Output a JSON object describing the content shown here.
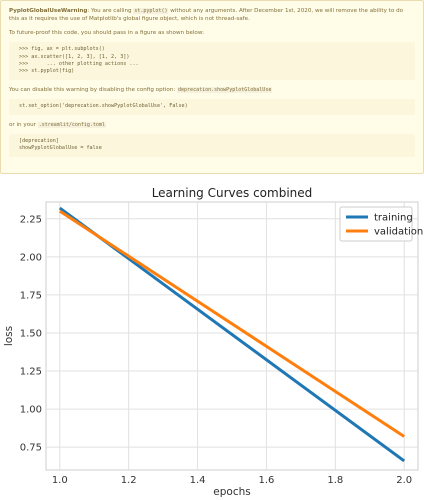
{
  "warning": {
    "title": "PyplotGlobalUseWarning",
    "intro_pre": ": You are calling ",
    "intro_code": "st.pyplot()",
    "intro_post": " without any arguments. After December 1st, 2020, we will remove the ability to do this as it requires the use of Matplotlib's global figure object, which is not thread-safe.",
    "futureproof_text": "To future-proof this code, you should pass in a figure as shown below:",
    "code_lines": [
      ">>> fig, ax = plt.subplots()",
      ">>> ax.scatter([1, 2, 3], [1, 2, 3])",
      ">>>      ... other plotting actions ...",
      ">>> st.pyplot(fig)"
    ],
    "disable_pre": "You can disable this warning by disabling the config option: ",
    "disable_code": "deprecation.showPyplotGlobalUse",
    "set_option_code": "st.set_option('deprecation.showPyplotGlobalUse', False)",
    "config_pre": "or in your ",
    "config_code": ".streamlit/config.toml",
    "toml_lines": [
      "[deprecation]",
      "showPyplotGlobalUse = false"
    ]
  },
  "chart_data": {
    "type": "line",
    "title": "Learning Curves combined",
    "xlabel": "epochs",
    "ylabel": "loss",
    "xlim": [
      0.96,
      2.04
    ],
    "ylim": [
      0.6,
      2.36
    ],
    "xticks": [
      "1.0",
      "1.2",
      "1.4",
      "1.6",
      "1.8",
      "2.0"
    ],
    "xtick_values": [
      1.0,
      1.2,
      1.4,
      1.6,
      1.8,
      2.0
    ],
    "yticks": [
      "0.75",
      "1.00",
      "1.25",
      "1.50",
      "1.75",
      "2.00",
      "2.25"
    ],
    "ytick_values": [
      0.75,
      1.0,
      1.25,
      1.5,
      1.75,
      2.0,
      2.25
    ],
    "grid": true,
    "legend_position": "top-right",
    "series": [
      {
        "name": "training",
        "color": "#1f77b4",
        "x": [
          1.0,
          2.0
        ],
        "y": [
          2.32,
          0.66
        ]
      },
      {
        "name": "validation",
        "color": "#ff7f0e",
        "x": [
          1.0,
          2.0
        ],
        "y": [
          2.3,
          0.82
        ]
      }
    ]
  }
}
